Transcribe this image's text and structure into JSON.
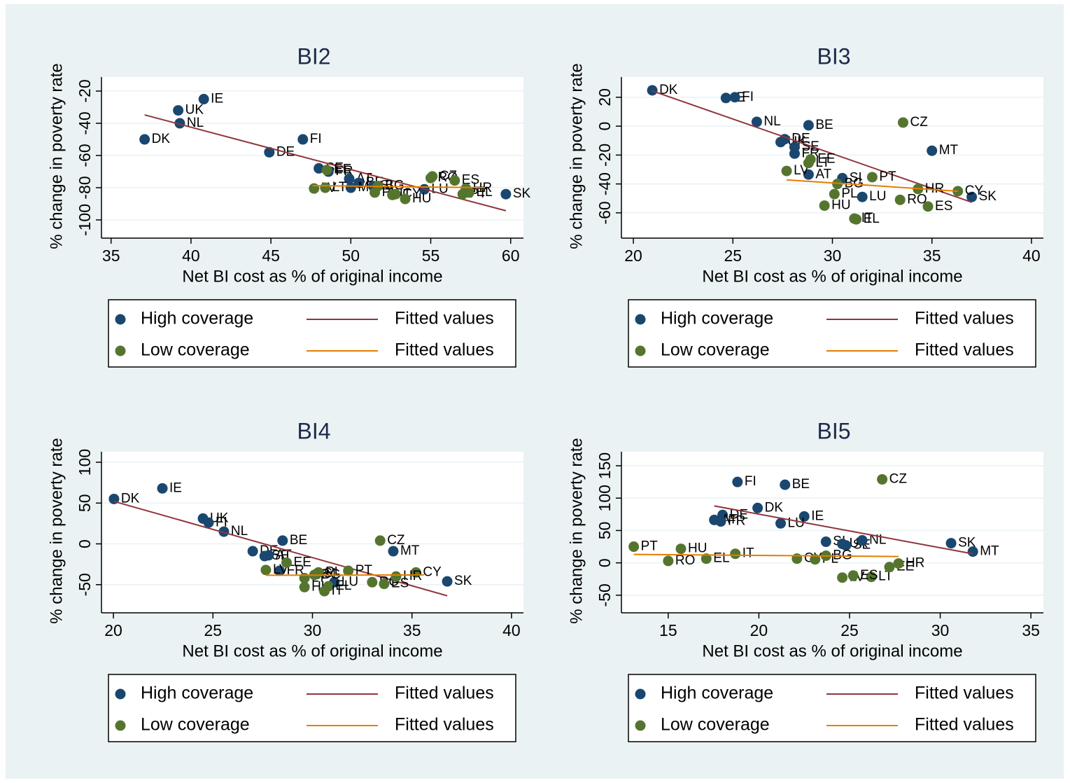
{
  "chart_data": [
    {
      "type": "scatter",
      "title": "BI2",
      "x_label": "Net BI cost as % of original income",
      "y_label": "% change in poverty rate",
      "xlim": [
        34.4,
        60.8
      ],
      "ylim": [
        -111.3,
        -11.3
      ],
      "xticks": [
        35,
        40,
        45,
        50,
        55,
        60
      ],
      "yticks": [
        -100,
        -80,
        -60,
        -40,
        -20
      ],
      "grid": true,
      "series": [
        {
          "name": "High coverage",
          "type": "scatter",
          "color": "#1a476f",
          "labels": [
            "DK",
            "UK",
            "NL",
            "IE",
            "DE",
            "FI",
            "SE",
            "FR",
            "AT",
            "BE",
            "MT",
            "SI",
            "LU",
            "SK"
          ],
          "x": [
            37.1,
            39.2,
            39.3,
            40.8,
            44.9,
            47.0,
            48.0,
            48.6,
            49.9,
            50.5,
            50.0,
            51.4,
            54.6,
            59.7
          ],
          "values": [
            -50,
            -32,
            -40,
            -25,
            -58,
            -50,
            -68,
            -70,
            -74.5,
            -77,
            -80,
            -79,
            -81,
            -84
          ]
        },
        {
          "name": "Fitted values",
          "type": "line",
          "color": "#90353b",
          "x": [
            37.1,
            59.7
          ],
          "values": [
            -34.8,
            -94.3
          ]
        },
        {
          "name": "Low coverage",
          "type": "scatter",
          "color": "#55752f",
          "labels": [
            "LV",
            "LT",
            "EE",
            "BG",
            "PL",
            "CY",
            "IT",
            "HU",
            "RO",
            "CZ",
            "ES",
            "PT",
            "EL",
            "HR"
          ],
          "x": [
            47.7,
            48.4,
            48.5,
            51.7,
            51.5,
            52.8,
            52.6,
            53.4,
            55.0,
            55.1,
            56.5,
            57.0,
            57.4,
            57.2
          ],
          "values": [
            -80.5,
            -80,
            -69,
            -79,
            -83,
            -84,
            -84.5,
            -87,
            -74,
            -73,
            -75.5,
            -84,
            -83,
            -80.5
          ]
        },
        {
          "name": "Fitted values",
          "type": "line",
          "color": "#e37e00",
          "x": [
            47.6,
            58.4
          ],
          "values": [
            -78.7,
            -80
          ]
        }
      ]
    },
    {
      "type": "scatter",
      "title": "BI3",
      "x_label": "Net BI cost as % of original income",
      "y_label": "% change in poverty rate",
      "xlim": [
        19.4,
        40.6
      ],
      "ylim": [
        -77.5,
        34
      ],
      "xticks": [
        20,
        25,
        30,
        35,
        40
      ],
      "yticks": [
        -60,
        -40,
        -20,
        0,
        20
      ],
      "grid": true,
      "series": [
        {
          "name": "High coverage",
          "type": "scatter",
          "color": "#1a476f",
          "labels": [
            "DK",
            "IE",
            "FI",
            "NL",
            "BE",
            "UK",
            "DE",
            "SE",
            "FR",
            "AT",
            "SI",
            "LU",
            "MT",
            "SK"
          ],
          "x": [
            20.95,
            24.65,
            25.1,
            26.2,
            28.8,
            27.4,
            27.6,
            28.1,
            28.1,
            28.8,
            30.5,
            31.5,
            35.0,
            37.0
          ],
          "values": [
            24.8,
            19.5,
            20,
            3,
            0.6,
            -11,
            -9,
            -14.5,
            -19,
            -33.5,
            -36,
            -49,
            -17,
            -49
          ]
        },
        {
          "name": "Fitted values",
          "type": "line",
          "color": "#90353b",
          "x": [
            20.95,
            37.0
          ],
          "values": [
            24.4,
            -52.7
          ]
        },
        {
          "name": "Low coverage",
          "type": "scatter",
          "color": "#55752f",
          "labels": [
            "CZ",
            "LV",
            "EE",
            "LT",
            "BG",
            "PT",
            "CY",
            "HR",
            "PL",
            "HU",
            "RO",
            "EL",
            "IT",
            "ES"
          ],
          "x": [
            33.55,
            27.7,
            28.9,
            28.8,
            30.25,
            32.0,
            36.3,
            34.3,
            30.1,
            29.6,
            33.4,
            31.2,
            31.1,
            34.8
          ],
          "values": [
            2.5,
            -31,
            -23,
            -25.5,
            -40,
            -35.3,
            -45,
            -43.5,
            -47,
            -55,
            -51,
            -64.5,
            -64,
            -55.6
          ]
        },
        {
          "name": "Fitted values",
          "type": "line",
          "color": "#e37e00",
          "x": [
            27.7,
            36.3
          ],
          "values": [
            -37.2,
            -45
          ]
        }
      ]
    },
    {
      "type": "scatter",
      "title": "BI4",
      "x_label": "Net BI cost as % of original income",
      "y_label": "% change in poverty rate",
      "xlim": [
        19.4,
        40.6
      ],
      "ylim": [
        -84.5,
        112.9
      ],
      "xticks": [
        20,
        25,
        30,
        35,
        40
      ],
      "yticks": [
        -50,
        0,
        50,
        100
      ],
      "grid": true,
      "series": [
        {
          "name": "High coverage",
          "type": "scatter",
          "color": "#1a476f",
          "labels": [
            "DK",
            "IE",
            "UK",
            "FI",
            "NL",
            "DE",
            "SE",
            "AT",
            "BE",
            "FR",
            "SI",
            "LU",
            "MT",
            "SK"
          ],
          "x": [
            20.03,
            22.46,
            24.5,
            24.78,
            25.55,
            27.0,
            27.6,
            27.8,
            28.5,
            28.35,
            30.2,
            31.1,
            34.06,
            36.77
          ],
          "values": [
            55,
            68,
            31,
            26,
            15,
            -9,
            -15,
            -14,
            4,
            -33,
            -37,
            -47,
            -9,
            -46
          ]
        },
        {
          "name": "Fitted values",
          "type": "line",
          "color": "#90353b",
          "x": [
            20.03,
            36.77
          ],
          "values": [
            52,
            -63.6
          ]
        },
        {
          "name": "Low coverage",
          "type": "scatter",
          "color": "#55752f",
          "labels": [
            "LV",
            "EE",
            "LT",
            "BG",
            "PL",
            "PT",
            "HU",
            "EL",
            "IT",
            "RO",
            "ES",
            "CZ",
            "CY",
            "HR"
          ],
          "x": [
            27.66,
            28.7,
            29.6,
            30.1,
            30.3,
            31.8,
            29.6,
            30.8,
            30.6,
            33.0,
            33.6,
            33.4,
            35.2,
            34.2
          ],
          "values": [
            -32,
            -23,
            -42,
            -38,
            -35,
            -33,
            -53,
            -52,
            -58,
            -47,
            -49,
            4,
            -35,
            -40
          ]
        },
        {
          "name": "Fitted values",
          "type": "line",
          "color": "#e37e00",
          "x": [
            27.66,
            35.6
          ],
          "values": [
            -38.5,
            -38
          ]
        }
      ]
    },
    {
      "type": "scatter",
      "title": "BI5",
      "x_label": "Net BI cost as % of original income",
      "y_label": "% change in poverty rate",
      "xlim": [
        12.42,
        35.69
      ],
      "ylim": [
        -77.2,
        171.7
      ],
      "xticks": [
        15,
        20,
        25,
        30,
        35
      ],
      "yticks": [
        -50,
        0,
        50,
        100,
        150
      ],
      "grid": true,
      "series": [
        {
          "name": "High coverage",
          "type": "scatter",
          "color": "#1a476f",
          "labels": [
            "FI",
            "BE",
            "DK",
            "DE",
            "AT",
            "FR",
            "IE",
            "LU",
            "SI",
            "UK",
            "SE",
            "NL",
            "SK",
            "MT"
          ],
          "x": [
            18.82,
            21.44,
            19.93,
            18.0,
            17.54,
            17.9,
            22.5,
            21.2,
            23.7,
            24.6,
            24.8,
            25.7,
            30.6,
            31.8
          ],
          "values": [
            125,
            120.7,
            84.8,
            74,
            66.3,
            64,
            71.7,
            61,
            32.6,
            29.3,
            27,
            34.8,
            30.4,
            17.4
          ]
        },
        {
          "name": "Fitted values",
          "type": "line",
          "color": "#90353b",
          "x": [
            17.54,
            31.8
          ],
          "values": [
            88,
            14
          ]
        },
        {
          "name": "Low coverage",
          "type": "scatter",
          "color": "#55752f",
          "labels": [
            "PT",
            "RO",
            "HU",
            "EL",
            "IT",
            "CY",
            "PL",
            "LT",
            "BG",
            "LV",
            "ES",
            "CZ",
            "EE",
            "HR"
          ],
          "x": [
            13.1,
            15.0,
            15.7,
            17.1,
            18.7,
            22.1,
            23.1,
            26.2,
            23.7,
            24.6,
            25.2,
            26.8,
            27.2,
            27.7
          ],
          "values": [
            25,
            3,
            21.7,
            6.5,
            14,
            6.5,
            5.4,
            -21.7,
            11,
            -22.8,
            -19.6,
            129,
            -6.5,
            -1
          ]
        },
        {
          "name": "Fitted values",
          "type": "line",
          "color": "#e37e00",
          "x": [
            13.1,
            27.7
          ],
          "values": [
            13,
            9.8
          ]
        }
      ]
    }
  ]
}
